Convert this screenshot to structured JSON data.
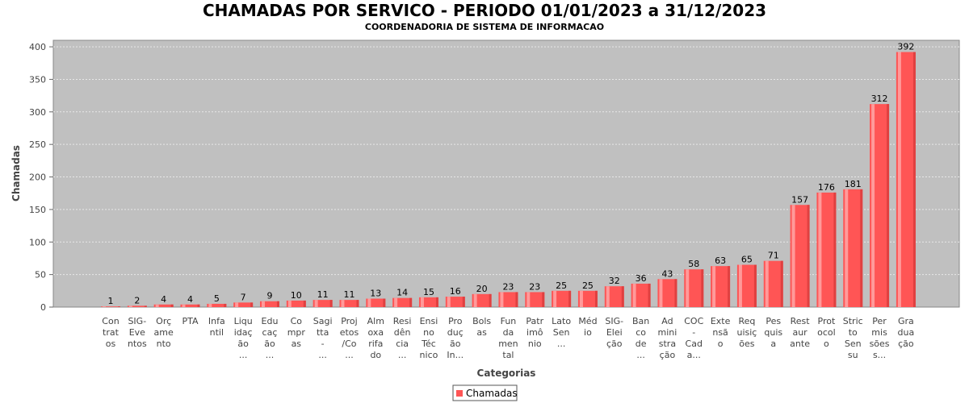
{
  "chart_data": {
    "type": "bar",
    "title": "CHAMADAS POR SERVICO - PERIODO 01/01/2023 a 31/12/2023",
    "subtitle": "COORDENADORIA DE SISTEMA DE INFORMACAO",
    "xlabel": "Categorias",
    "ylabel": "Chamadas",
    "ylim": [
      0,
      410
    ],
    "yticks": [
      0,
      50,
      100,
      150,
      200,
      250,
      300,
      350,
      400
    ],
    "grid": true,
    "legend_position": "bottom-center",
    "series": [
      {
        "name": "Chamadas",
        "color": "#ff5555",
        "values": [
          1,
          2,
          4,
          4,
          5,
          7,
          9,
          10,
          11,
          11,
          13,
          14,
          15,
          16,
          20,
          23,
          23,
          25,
          25,
          32,
          36,
          43,
          58,
          63,
          65,
          71,
          157,
          176,
          181,
          312,
          392
        ]
      }
    ],
    "categories": [
      [
        "Con",
        "trat",
        "os"
      ],
      [
        "SIG-",
        "Eve",
        "ntos"
      ],
      [
        "Orç",
        "ame",
        "nto"
      ],
      [
        "PTA"
      ],
      [
        "Infa",
        "ntil"
      ],
      [
        "Liqu",
        "idaç",
        "ão",
        "..."
      ],
      [
        "Edu",
        "caç",
        "ão",
        "..."
      ],
      [
        "Co",
        "mpr",
        "as"
      ],
      [
        "Sagi",
        "tta",
        "-",
        "..."
      ],
      [
        "Proj",
        "etos",
        "/Co",
        "..."
      ],
      [
        "Alm",
        "oxa",
        "rifa",
        "do"
      ],
      [
        "Resi",
        "dên",
        "cia",
        "..."
      ],
      [
        "Ensi",
        "no",
        "Téc",
        "nico"
      ],
      [
        "Pro",
        "duç",
        "ão",
        "In..."
      ],
      [
        "Bols",
        "as"
      ],
      [
        "Fun",
        "da",
        "men",
        "tal"
      ],
      [
        "Patr",
        "imô",
        "nio"
      ],
      [
        "Lato",
        "",
        "Sen",
        "..."
      ],
      [
        "Méd",
        "io"
      ],
      [
        "SIG-",
        "Elei",
        "ção"
      ],
      [
        "Ban",
        "co",
        "de",
        "..."
      ],
      [
        "Ad",
        "mini",
        "stra",
        "ção"
      ],
      [
        "COC",
        "-",
        "Cad",
        "a..."
      ],
      [
        "Exte",
        "nsã",
        "o"
      ],
      [
        "Req",
        "uisiç",
        "ões"
      ],
      [
        "Pes",
        "quis",
        "a"
      ],
      [
        "Rest",
        "aur",
        "ante"
      ],
      [
        "Prot",
        "ocol",
        "o"
      ],
      [
        "Stric",
        "to",
        "Sen",
        "su"
      ],
      [
        "Per",
        "mis",
        "sões",
        "s..."
      ],
      [
        "Gra",
        "dua",
        "ção"
      ]
    ]
  },
  "colors": {
    "plot_background": "#c0c0c0",
    "bar": "#ff5555",
    "gridline": "#e8e8e8"
  }
}
